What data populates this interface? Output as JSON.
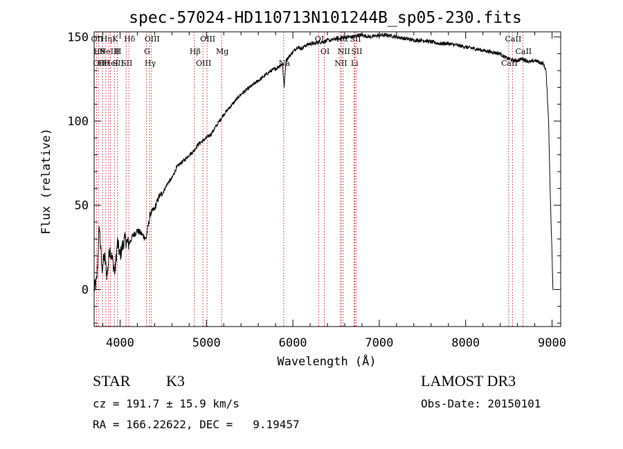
{
  "info": {
    "class": "STAR",
    "subclass": "K3",
    "survey": "LAMOST DR3",
    "cz": "cz = 191.7 ± 15.9 km/s",
    "obs_date": "Obs-Date: 20150101",
    "radec": "RA = 166.22622, DEC =   9.19457"
  },
  "chart_data": {
    "type": "line",
    "title": "spec-57024-HD110713N101244B_sp05-230.fits",
    "xlabel": "Wavelength (Å)",
    "ylabel": "Flux (relative)",
    "xlim": [
      3700,
      9100
    ],
    "ylim": [
      -22,
      153
    ],
    "xticks": [
      4000,
      5000,
      6000,
      7000,
      8000,
      9000
    ],
    "yticks": [
      0,
      50,
      100,
      150
    ],
    "line_color": "#000000",
    "marker_color": "#cc0000",
    "spectrum": {
      "x": [
        3700,
        3730,
        3760,
        3790,
        3820,
        3850,
        3880,
        3910,
        3940,
        3970,
        4000,
        4050,
        4100,
        4150,
        4200,
        4250,
        4300,
        4350,
        4400,
        4450,
        4500,
        4550,
        4600,
        4650,
        4700,
        4750,
        4800,
        4850,
        4900,
        4950,
        5000,
        5050,
        5100,
        5150,
        5200,
        5250,
        5300,
        5350,
        5400,
        5450,
        5500,
        5550,
        5600,
        5650,
        5700,
        5750,
        5800,
        5850,
        5880,
        5900,
        5920,
        5950,
        6000,
        6050,
        6100,
        6150,
        6200,
        6250,
        6300,
        6350,
        6400,
        6450,
        6500,
        6550,
        6600,
        6650,
        6700,
        6750,
        6800,
        6900,
        7000,
        7100,
        7200,
        7300,
        7400,
        7500,
        7600,
        7700,
        7800,
        7900,
        8000,
        8100,
        8200,
        8300,
        8400,
        8450,
        8500,
        8550,
        8600,
        8650,
        8700,
        8750,
        8800,
        8850,
        8900,
        8930,
        8960,
        8980,
        9000,
        9010
      ],
      "y": [
        0,
        5,
        38,
        12,
        20,
        8,
        25,
        18,
        10,
        28,
        20,
        30,
        27,
        32,
        35,
        33,
        30,
        45,
        48,
        55,
        58,
        63,
        66,
        72,
        75,
        77,
        80,
        82,
        86,
        88,
        90,
        92,
        96,
        100,
        104,
        107,
        110,
        113,
        116,
        118,
        120,
        122,
        124,
        126,
        128,
        130,
        131,
        133,
        134,
        120,
        136,
        138,
        141,
        144,
        143,
        145,
        146,
        146,
        147,
        147,
        148,
        148,
        149,
        149,
        150,
        150,
        150,
        151,
        151,
        150,
        151,
        151,
        150,
        149,
        148,
        148,
        147,
        146,
        146,
        145,
        144,
        143,
        142,
        141,
        140,
        138,
        137,
        136,
        136,
        137,
        136,
        135,
        136,
        135,
        134,
        130,
        100,
        55,
        20,
        0
      ]
    },
    "lines": [
      {
        "w": 3727,
        "labels": [
          "OII"
        ]
      },
      {
        "w": 3750,
        "labels": [
          "Hθ",
          "OII"
        ]
      },
      {
        "w": 3798,
        "labels": [
          "Hθ"
        ]
      },
      {
        "w": 3835,
        "labels": [
          "Hη"
        ]
      },
      {
        "w": 3869,
        "labels": [
          "NeIII"
        ]
      },
      {
        "w": 3889,
        "labels": [
          "HeI"
        ]
      },
      {
        "w": 3934,
        "labels": [
          "K"
        ]
      },
      {
        "w": 3969,
        "labels": [
          "H",
          "SII"
        ]
      },
      {
        "w": 4070,
        "labels": [
          "SII"
        ]
      },
      {
        "w": 4102,
        "labels": [
          "Hδ"
        ]
      },
      {
        "w": 4304,
        "labels": [
          "G"
        ]
      },
      {
        "w": 4341,
        "labels": [
          "Hγ"
        ]
      },
      {
        "w": 4363,
        "labels": [
          "OIII"
        ]
      },
      {
        "w": 4861,
        "labels": [
          "Hβ"
        ]
      },
      {
        "w": 4959,
        "labels": [
          "OIII"
        ]
      },
      {
        "w": 5007,
        "labels": [
          "OIII"
        ]
      },
      {
        "w": 5175,
        "labels": [
          "Mg"
        ]
      },
      {
        "w": 5894,
        "labels": [
          "Na"
        ]
      },
      {
        "w": 6300,
        "labels": [
          "OI"
        ]
      },
      {
        "w": 6364,
        "labels": [
          "OI"
        ]
      },
      {
        "w": 6548,
        "labels": [
          "NII"
        ]
      },
      {
        "w": 6563,
        "labels": [
          "Hα"
        ]
      },
      {
        "w": 6583,
        "labels": [
          "NII"
        ]
      },
      {
        "w": 6707,
        "labels": [
          "Li"
        ]
      },
      {
        "w": 6716,
        "labels": [
          "SII"
        ]
      },
      {
        "w": 6731,
        "labels": [
          "SII"
        ]
      },
      {
        "w": 8498,
        "labels": [
          "CaII"
        ]
      },
      {
        "w": 8542,
        "labels": [
          "CaII"
        ]
      },
      {
        "w": 8662,
        "labels": [
          "CaII"
        ]
      }
    ]
  }
}
